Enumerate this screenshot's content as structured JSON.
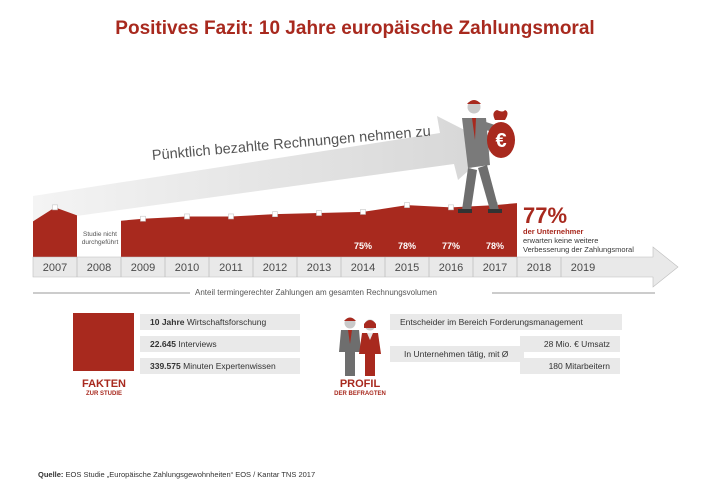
{
  "title": "Positives Fazit: 10 Jahre europäische Zahlungsmoral",
  "arrow_label": "Pünktlich bezahlte Rechnungen nehmen zu",
  "axis_caption": "Anteil termingerechter Zahlungen am gesamten Rechnungsvolumen",
  "note_2008": "Studie nicht durchgeführt",
  "highlight": {
    "value": "77%",
    "line1": "der Unternehmer",
    "line2": "erwarten keine weitere",
    "line3": "Verbesserung der Zahlungsmoral"
  },
  "chart_data": {
    "type": "area",
    "title": "Anteil termingerechter Zahlungen am gesamten Rechnungsvolumen",
    "categories": [
      "2007",
      "2008",
      "2009",
      "2010",
      "2011",
      "2012",
      "2013",
      "2014",
      "2015",
      "2016",
      "2017",
      "2018",
      "2019"
    ],
    "series": [
      {
        "name": "Anteil termingerechter Zahlungen",
        "values": [
          77,
          null,
          72,
          73,
          73,
          74,
          74.5,
          75,
          78,
          77,
          78,
          null,
          null
        ],
        "labels": [
          "",
          "",
          "",
          "",
          "",
          "",
          "",
          "75%",
          "78%",
          "77%",
          "78%",
          "",
          ""
        ]
      }
    ],
    "ylim": [
      60,
      82
    ]
  },
  "facts": {
    "heading": "FAKTEN",
    "subheading": "ZUR STUDIE",
    "rows": [
      {
        "bold": "10 Jahre",
        "text": "Wirtschaftsforschung"
      },
      {
        "bold": "22.645",
        "text": "Interviews"
      },
      {
        "bold": "339.575",
        "text": "Minuten Expertenwissen"
      }
    ]
  },
  "profile": {
    "heading": "PROFIL",
    "subheading": "DER BEFRAGTEN",
    "row1": "Entscheider im Bereich Forderungsmanagement",
    "row2_label": "In Unternehmen tätig, mit Ø",
    "row2a": "28 Mio. € Umsatz",
    "row2b": "180 Mitarbeitern"
  },
  "source": {
    "label": "Quelle:",
    "text": "EOS Studie „Europäische Zahlungsgewohnheiten“ EOS / Kantar TNS 2017"
  },
  "colors": {
    "accent": "#a8291e",
    "grey_light": "#e9e9e9",
    "grey_mid": "#cfcfcf",
    "grey_dark": "#6e6e6e"
  }
}
